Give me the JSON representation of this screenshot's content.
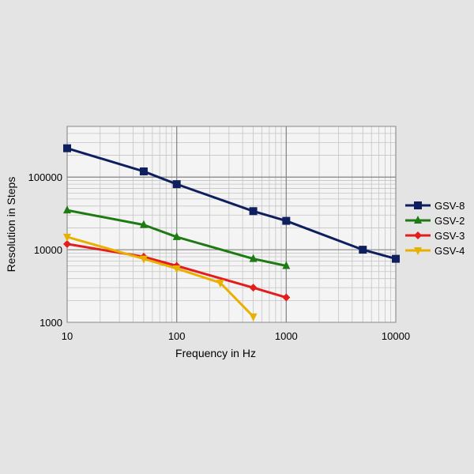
{
  "chart_data": {
    "type": "line",
    "title": "",
    "xlabel": "Frequency in Hz",
    "ylabel": "Resolution in Steps",
    "x_scale": "log",
    "y_scale": "log",
    "xlim": [
      10,
      10000
    ],
    "ylim": [
      1000,
      500000
    ],
    "x_ticks": [
      10,
      100,
      1000,
      10000
    ],
    "x_tick_labels": [
      "10",
      "100",
      "1000",
      "10000"
    ],
    "y_ticks": [
      1000,
      10000,
      100000
    ],
    "y_tick_labels": [
      "1000",
      "10000",
      "100000"
    ],
    "grid": true,
    "legend_position": "right",
    "series": [
      {
        "name": "GSV-8",
        "color": "#0f1f5e",
        "marker": "square",
        "x": [
          10,
          50,
          100,
          500,
          1000,
          5000,
          10000
        ],
        "y": [
          250000,
          120000,
          80000,
          34000,
          25000,
          10000,
          7500
        ]
      },
      {
        "name": "GSV-2",
        "color": "#1e7a12",
        "marker": "triangle-up",
        "x": [
          10,
          50,
          100,
          500,
          1000
        ],
        "y": [
          35000,
          22000,
          15000,
          7500,
          6000
        ]
      },
      {
        "name": "GSV-3",
        "color": "#e21d1d",
        "marker": "diamond",
        "x": [
          10,
          50,
          100,
          500,
          1000
        ],
        "y": [
          12000,
          8000,
          6000,
          3000,
          2200
        ]
      },
      {
        "name": "GSV-4",
        "color": "#e8b000",
        "marker": "triangle-down",
        "x": [
          10,
          50,
          100,
          250,
          500
        ],
        "y": [
          15000,
          7500,
          5500,
          3500,
          1200
        ]
      }
    ]
  }
}
